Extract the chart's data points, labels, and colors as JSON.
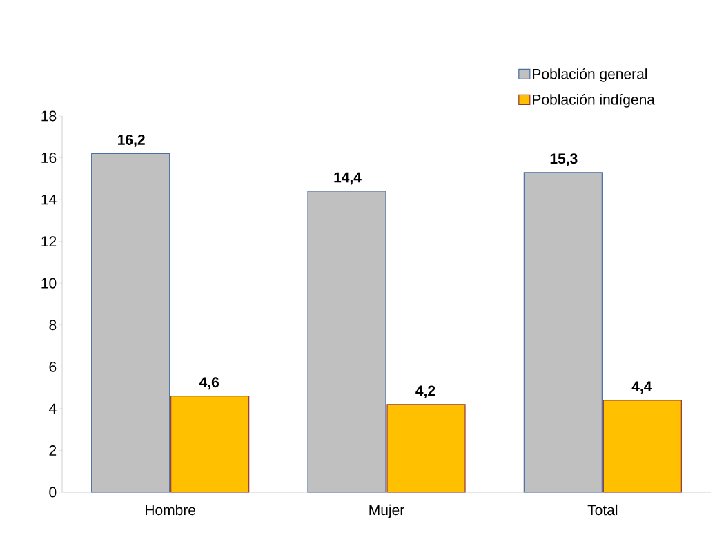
{
  "chart_data": {
    "type": "bar",
    "categories": [
      "Hombre",
      "Mujer",
      "Total"
    ],
    "series": [
      {
        "name": "Población general",
        "color": "#c0c0c0",
        "values": [
          16.2,
          14.4,
          15.3
        ],
        "value_labels": [
          "16,2",
          "14,4",
          "15,3"
        ]
      },
      {
        "name": "Población indígena",
        "color": "#ffc000",
        "values": [
          4.6,
          4.2,
          4.4
        ],
        "value_labels": [
          "4,6",
          "4,2",
          "4,4"
        ]
      }
    ],
    "ylim": [
      0,
      18
    ],
    "yticks": [
      0,
      2,
      4,
      6,
      8,
      10,
      12,
      14,
      16,
      18
    ],
    "legend": "top right",
    "grid": false
  }
}
